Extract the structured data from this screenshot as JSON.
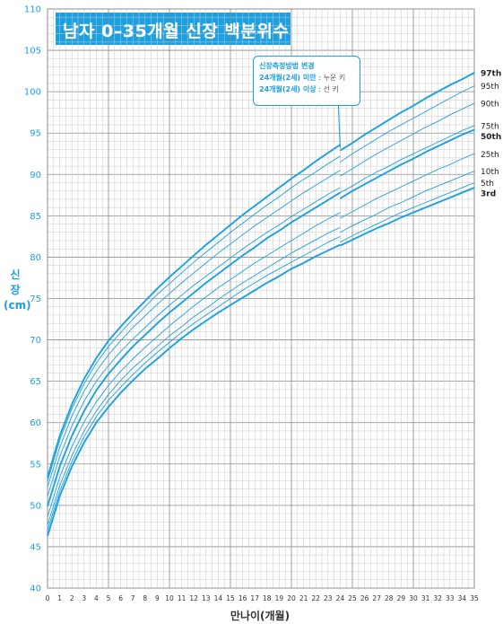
{
  "chart_data": {
    "type": "line",
    "title": "남자 0–35개월 신장 백분위수",
    "ylabel_lines": [
      "신",
      "장",
      "(cm)"
    ],
    "xlabel": "만나이(개월)",
    "xlim": [
      0,
      35
    ],
    "ylim": [
      40,
      110
    ],
    "x_ticks": [
      0,
      1,
      2,
      3,
      4,
      5,
      6,
      7,
      8,
      9,
      10,
      11,
      12,
      13,
      14,
      15,
      16,
      17,
      18,
      19,
      20,
      21,
      22,
      23,
      24,
      25,
      26,
      27,
      28,
      29,
      30,
      31,
      32,
      33,
      34,
      35
    ],
    "y_ticks": [
      40,
      45,
      50,
      55,
      60,
      65,
      70,
      75,
      80,
      85,
      90,
      95,
      100,
      105,
      110
    ],
    "grid": true,
    "legend_placement": "right",
    "annotation": {
      "line1": "신장측정방법 변경",
      "line2_cond": "24개월(2세) 미만",
      "line2_result": ": 누운 키",
      "line3_cond": "24개월(2세) 이상",
      "line3_result": ": 선 키",
      "at_x": 24
    },
    "x": [
      0,
      1,
      2,
      3,
      4,
      5,
      6,
      7,
      8,
      9,
      10,
      11,
      12,
      13,
      14,
      15,
      16,
      17,
      18,
      19,
      20,
      21,
      22,
      23,
      24,
      24,
      25,
      26,
      27,
      28,
      29,
      30,
      31,
      32,
      33,
      34,
      35
    ],
    "series": [
      {
        "name": "97th",
        "bold": true,
        "values": [
          53.4,
          58.4,
          62.2,
          65.3,
          67.8,
          69.9,
          71.6,
          73.2,
          74.7,
          76.2,
          77.6,
          78.9,
          80.2,
          81.5,
          82.7,
          83.9,
          85.1,
          86.2,
          87.3,
          88.4,
          89.5,
          90.5,
          91.6,
          92.6,
          93.6,
          92.9,
          93.8,
          94.8,
          95.7,
          96.6,
          97.5,
          98.3,
          99.2,
          100.0,
          100.8,
          101.5,
          102.3
        ]
      },
      {
        "name": "95th",
        "bold": false,
        "values": [
          52.9,
          57.9,
          61.7,
          64.7,
          67.2,
          69.2,
          70.9,
          72.5,
          74.0,
          75.5,
          76.8,
          78.1,
          79.4,
          80.6,
          81.8,
          83.0,
          84.1,
          85.2,
          86.3,
          87.3,
          88.4,
          89.4,
          90.3,
          91.3,
          92.2,
          91.5,
          92.5,
          93.4,
          94.3,
          95.2,
          96.0,
          96.8,
          97.6,
          98.4,
          99.2,
          100.0,
          100.7
        ]
      },
      {
        "name": "90th",
        "bold": false,
        "values": [
          52.2,
          57.0,
          60.8,
          63.8,
          66.2,
          68.2,
          69.9,
          71.5,
          72.9,
          74.3,
          75.6,
          76.9,
          78.1,
          79.3,
          80.5,
          81.6,
          82.7,
          83.8,
          84.8,
          85.8,
          86.8,
          87.8,
          88.7,
          89.6,
          90.5,
          89.8,
          90.7,
          91.6,
          92.5,
          93.3,
          94.1,
          94.9,
          95.7,
          96.4,
          97.2,
          97.9,
          98.6
        ]
      },
      {
        "name": "75th",
        "bold": false,
        "values": [
          51.1,
          55.9,
          59.6,
          62.6,
          65.0,
          66.9,
          68.6,
          70.1,
          71.5,
          72.9,
          74.2,
          75.4,
          76.6,
          77.7,
          78.8,
          79.9,
          81.0,
          82.0,
          83.0,
          83.9,
          84.9,
          85.8,
          86.7,
          87.6,
          88.4,
          87.8,
          88.6,
          89.5,
          90.3,
          91.0,
          91.8,
          92.5,
          93.2,
          93.9,
          94.6,
          95.3,
          95.9
        ]
      },
      {
        "name": "50th",
        "bold": true,
        "values": [
          49.9,
          54.7,
          58.4,
          61.4,
          63.9,
          65.9,
          67.6,
          69.2,
          70.6,
          72.0,
          73.3,
          74.5,
          75.7,
          76.9,
          78.0,
          79.1,
          80.2,
          81.2,
          82.3,
          83.2,
          84.2,
          85.1,
          86.0,
          86.9,
          87.8,
          87.1,
          88.0,
          88.8,
          89.6,
          90.4,
          91.2,
          91.9,
          92.7,
          93.4,
          94.1,
          94.8,
          95.4
        ]
      },
      {
        "name": "25th",
        "bold": false,
        "values": [
          48.6,
          53.4,
          57.1,
          60.1,
          62.5,
          64.5,
          66.2,
          67.7,
          69.1,
          70.4,
          71.7,
          72.9,
          74.1,
          75.2,
          76.3,
          77.3,
          78.3,
          79.3,
          80.2,
          81.1,
          82.0,
          82.9,
          83.8,
          84.6,
          85.4,
          84.7,
          85.5,
          86.3,
          87.1,
          87.8,
          88.5,
          89.2,
          89.9,
          90.6,
          91.2,
          91.9,
          92.5
        ]
      },
      {
        "name": "10th",
        "bold": false,
        "values": [
          47.6,
          52.4,
          56.0,
          59.0,
          61.4,
          63.4,
          65.1,
          66.6,
          67.9,
          69.2,
          70.5,
          71.6,
          72.8,
          73.8,
          74.9,
          75.9,
          76.9,
          77.8,
          78.7,
          79.6,
          80.5,
          81.3,
          82.1,
          82.9,
          83.6,
          83.0,
          83.8,
          84.5,
          85.2,
          86.0,
          86.6,
          87.3,
          88.0,
          88.6,
          89.2,
          89.8,
          90.4
        ]
      },
      {
        "name": "5th",
        "bold": false,
        "values": [
          47.0,
          51.7,
          55.3,
          58.3,
          60.7,
          62.7,
          64.3,
          65.8,
          67.2,
          68.5,
          69.7,
          70.9,
          72.0,
          73.0,
          74.0,
          75.0,
          76.0,
          76.9,
          77.8,
          78.6,
          79.4,
          80.2,
          81.0,
          81.8,
          82.5,
          81.8,
          82.6,
          83.3,
          84.0,
          84.7,
          85.4,
          86.0,
          86.6,
          87.2,
          87.8,
          88.4,
          89.0
        ]
      },
      {
        "name": "3rd",
        "bold": true,
        "values": [
          46.3,
          51.1,
          54.7,
          57.6,
          60.0,
          61.9,
          63.6,
          65.1,
          66.5,
          67.7,
          69.0,
          70.2,
          71.3,
          72.3,
          73.3,
          74.2,
          75.1,
          76.0,
          76.9,
          77.7,
          78.6,
          79.3,
          80.1,
          80.8,
          81.5,
          81.4,
          82.1,
          82.8,
          83.5,
          84.1,
          84.8,
          85.4,
          86.0,
          86.6,
          87.2,
          87.8,
          88.4
        ]
      }
    ],
    "colors": {
      "axis_label": "#1ba1e2",
      "line": "#1ba1e2",
      "grid_minor": "#c8c8c8",
      "grid_major": "#8a8a8a",
      "title_bg": "#1ba1e2",
      "title_text": "#ffffff"
    }
  }
}
